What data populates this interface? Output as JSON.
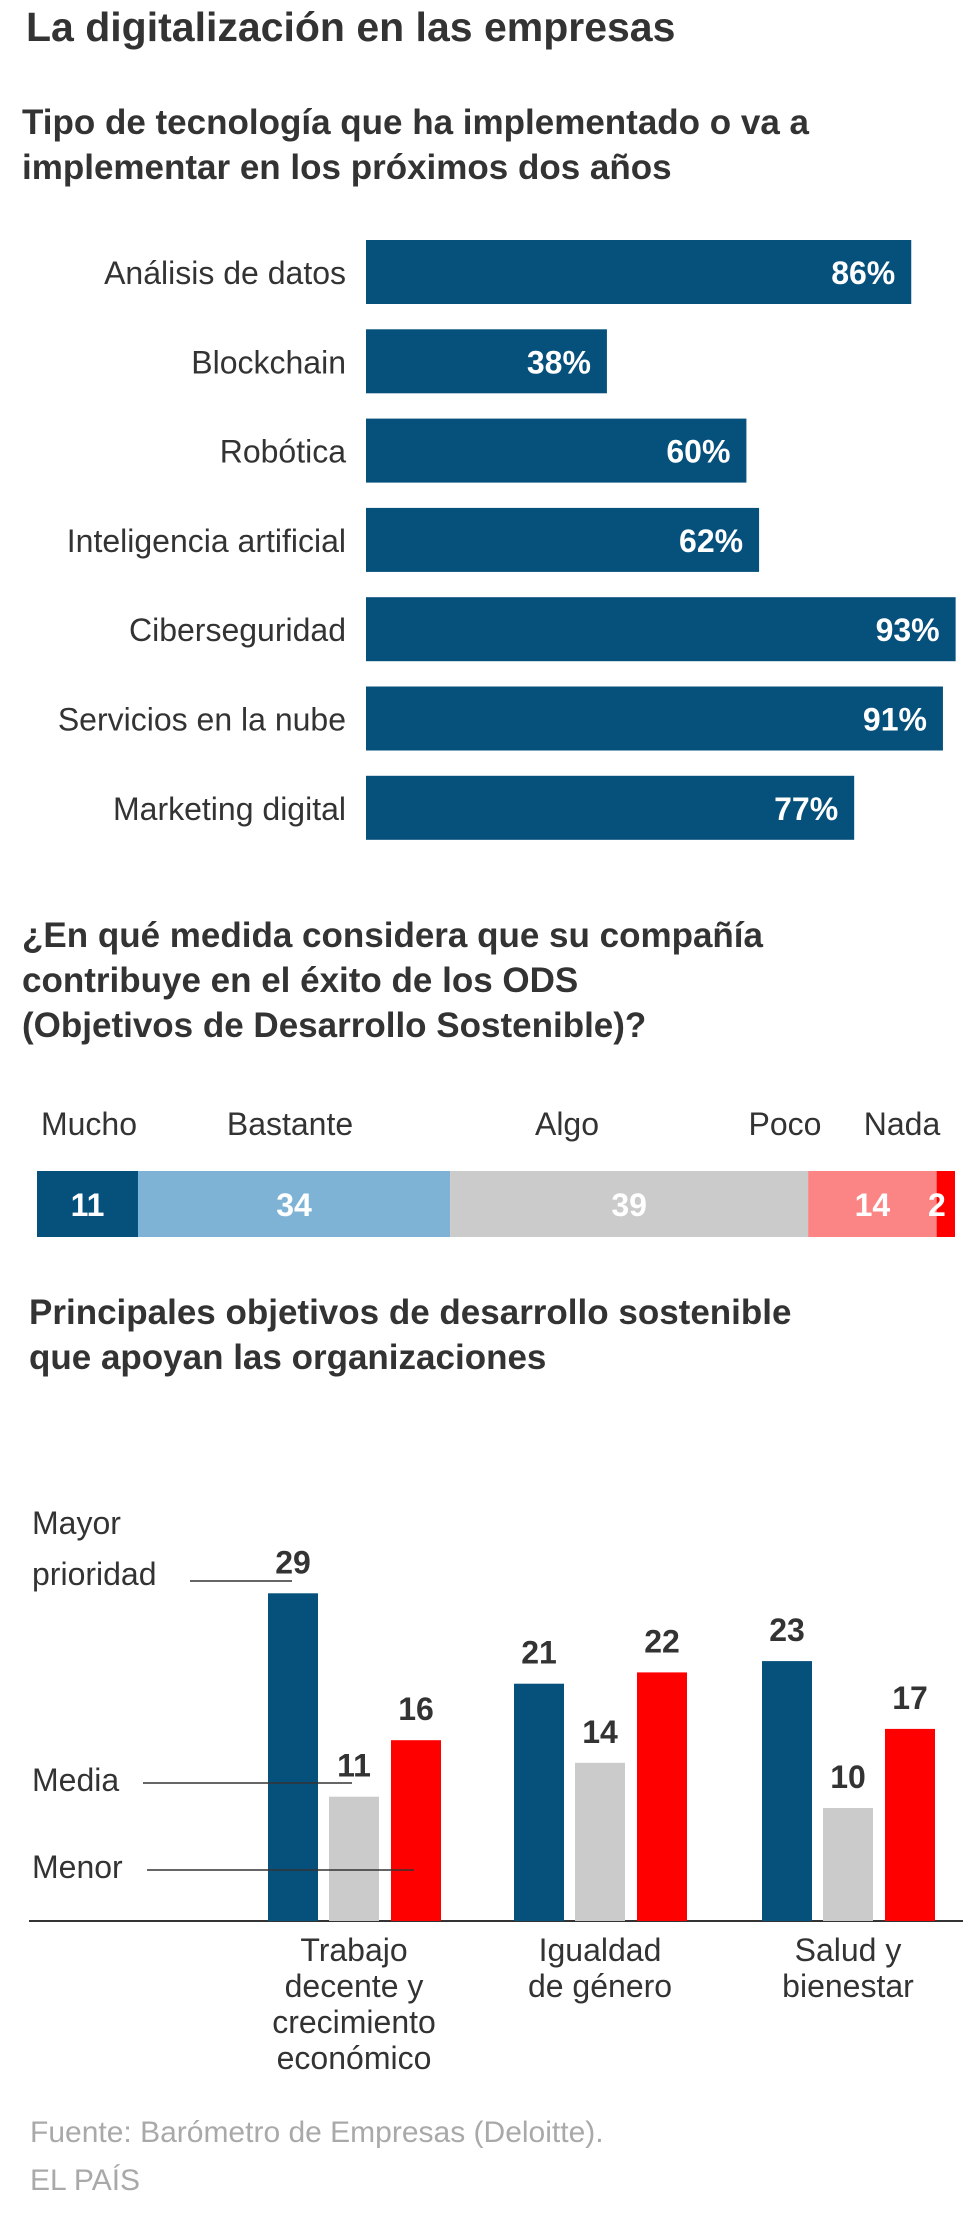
{
  "header": {
    "title": "La digitalización en las empresas"
  },
  "section1": {
    "title_lines": [
      "Tipo de tecnología que ha implementado o va a",
      "implementar en los próximos dos años"
    ]
  },
  "section2": {
    "title_lines": [
      "¿En qué medida considera que su compañía",
      "contribuye en el éxito  de los ODS",
      "(Objetivos de Desarrollo Sostenible)?"
    ]
  },
  "section3": {
    "title_lines": [
      "Principales objetivos de desarrollo sostenible",
      "que apoyan las organizaciones"
    ]
  },
  "colors": {
    "dark_blue": "#06507c",
    "light_blue": "#7eb3d5",
    "gray": "#cbcbcb",
    "pink": "#fb8585",
    "red": "#ff0000",
    "text": "#333333",
    "source": "#a9a9a9"
  },
  "chart_data": [
    {
      "type": "bar",
      "orientation": "horizontal",
      "title": "Tipo de tecnología que ha implementado o va a implementar en los próximos dos años",
      "categories": [
        "Análisis de datos",
        "Blockchain",
        "Robótica",
        "Inteligencia artificial",
        "Ciberseguridad",
        "Servicios en la nube",
        "Marketing digital"
      ],
      "values": [
        86,
        38,
        60,
        62,
        93,
        91,
        77
      ],
      "value_labels": [
        "86%",
        "38%",
        "60%",
        "62%",
        "93%",
        "91%",
        "77%"
      ],
      "xlim": [
        0,
        100
      ]
    },
    {
      "type": "bar",
      "orientation": "stacked-horizontal",
      "title": "¿En qué medida considera que su compañía contribuye en el éxito  de los ODS (Objetivos de Desarrollo Sostenible)?",
      "categories": [
        "Mucho",
        "Bastante",
        "Algo",
        "Poco",
        "Nada"
      ],
      "values": [
        11,
        34,
        39,
        14,
        2
      ],
      "value_labels": [
        "11",
        "34",
        "39",
        "14",
        "2"
      ]
    },
    {
      "type": "bar",
      "title": "Principales objetivos de desarrollo sostenible que apoyan las organizaciones",
      "groups": [
        {
          "label_lines": [
            "Trabajo",
            "decente y",
            "crecimiento",
            "económico"
          ]
        },
        {
          "label_lines": [
            "Igualdad",
            "de género"
          ]
        },
        {
          "label_lines": [
            "Salud y",
            "bienestar"
          ]
        }
      ],
      "series": [
        {
          "name": "Mayor prioridad",
          "label_lines": [
            "Mayor",
            "prioridad"
          ],
          "values": [
            29,
            21,
            23
          ]
        },
        {
          "name": "Media",
          "label_lines": [
            "Media"
          ],
          "values": [
            11,
            14,
            10
          ]
        },
        {
          "name": "Menor",
          "label_lines": [
            "Menor"
          ],
          "values": [
            16,
            22,
            17
          ]
        }
      ],
      "ylim": [
        0,
        29
      ]
    }
  ],
  "footer": {
    "source": "Fuente: Barómetro de Empresas (Deloitte).",
    "credit": "EL PAÍS"
  }
}
